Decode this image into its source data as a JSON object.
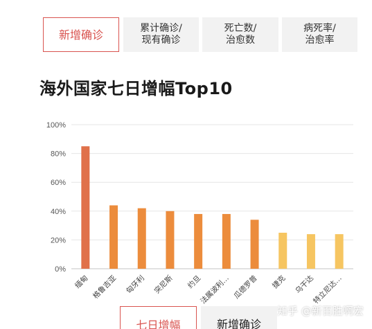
{
  "tabs": [
    {
      "label": "新增确诊",
      "active": true
    },
    {
      "label": "累计确诊/\n现有确诊",
      "active": false
    },
    {
      "label": "死亡数/\n治愈数",
      "active": false
    },
    {
      "label": "病死率/\n治愈率",
      "active": false
    }
  ],
  "title": "海外国家七日增幅Top10",
  "colors": {
    "accent": "#d9534f",
    "bar_dark": "#e0714a",
    "bar_mid": "#ec8c3c",
    "bar_light": "#f6c561",
    "grid": "#e6e6e6",
    "axis": "#cfcfcf"
  },
  "chart_data": {
    "type": "bar",
    "title": "海外国家七日增幅Top10",
    "categories": [
      "缅甸",
      "格鲁吉亚",
      "匈牙利",
      "突尼斯",
      "约旦",
      "法属波利…",
      "瓜德罗普",
      "捷克",
      "乌干达",
      "特立尼达…"
    ],
    "values": [
      85,
      44,
      42,
      40,
      38,
      38,
      34,
      25,
      24,
      24
    ],
    "bar_colors": [
      "#e0714a",
      "#ec8c3c",
      "#ec8c3c",
      "#ec8c3c",
      "#ec8c3c",
      "#ec8c3c",
      "#ec8c3c",
      "#f6c561",
      "#f6c561",
      "#f6c561"
    ],
    "y_ticks": [
      "0%",
      "20%",
      "40%",
      "60%",
      "80%",
      "100%"
    ],
    "ylim": [
      0,
      100
    ],
    "grid": true
  },
  "watermark": {
    "text": "知乎 @新百胜啊宏"
  },
  "bottom_tabs": [
    {
      "label": "七日增幅",
      "active": true
    },
    {
      "label": "新增确诊",
      "active": false
    }
  ]
}
